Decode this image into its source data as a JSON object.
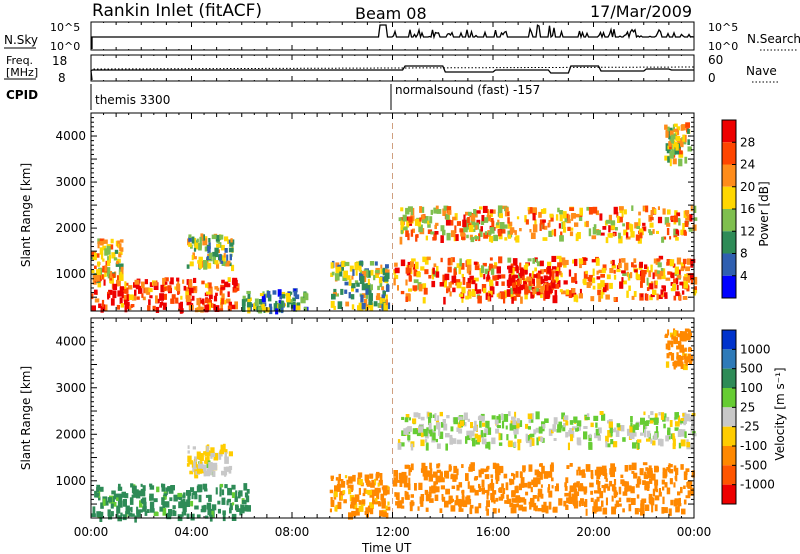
{
  "header": {
    "station": "Rankin Inlet (fitACF)",
    "beam": "Beam 08",
    "date": "17/Mar/2009"
  },
  "status_panels": {
    "nsky_label": "N.Sky",
    "nsearch_label": "N.Search",
    "nsky_ticks": [
      "10^5",
      "10^0"
    ],
    "nsearch_ticks": [
      "10^5",
      "10^0"
    ],
    "freq_label_line1": "Freq.",
    "freq_label_line2": "[MHz]",
    "freq_ticks": [
      "18",
      "8"
    ],
    "nave_label": "Nave",
    "nave_ticks": [
      "60",
      "0"
    ],
    "cpid_label": "CPID",
    "cpid_left": "themis 3300",
    "cpid_right": "normalsound (fast) -157"
  },
  "axes": {
    "ylabel": "Slant Range [km]",
    "xlabel": "Time UT",
    "xticks": [
      "00:00",
      "04:00",
      "08:00",
      "12:00",
      "16:00",
      "20:00",
      "00:00"
    ],
    "yticks": [
      "1000",
      "2000",
      "3000",
      "4000"
    ]
  },
  "colorbars": {
    "power": {
      "label": "Power [dB]",
      "ticks": [
        "4",
        "8",
        "12",
        "16",
        "20",
        "24",
        "28"
      ],
      "colors": [
        "#0000ff",
        "#2f5fb0",
        "#2e8b57",
        "#7fbf4f",
        "#ffd700",
        "#ff8c1a",
        "#ff4500",
        "#ee0000"
      ]
    },
    "velocity": {
      "label": "Velocity [m s⁻¹]",
      "ticks": [
        "1000",
        "500",
        "100",
        "25",
        "-25",
        "-100",
        "-500",
        "-1000"
      ],
      "colors": [
        "#0033cc",
        "#2e7ab8",
        "#2e8b57",
        "#66cc33",
        "#c8c8c8",
        "#ffcc00",
        "#ff8800",
        "#ff5500",
        "#ee0000"
      ]
    }
  },
  "chart_data": [
    {
      "type": "heatmap",
      "panel": "power",
      "x_range_hours": [
        0,
        24
      ],
      "y_range_km": [
        200,
        4500
      ],
      "regions": [
        {
          "t0": 0.0,
          "t1": 5.8,
          "r0": 250,
          "r1": 950,
          "level": 0.85
        },
        {
          "t0": 0.0,
          "t1": 1.2,
          "r0": 950,
          "r1": 1800,
          "level": 0.55
        },
        {
          "t0": 3.8,
          "t1": 5.6,
          "r0": 1200,
          "r1": 1900,
          "level": 0.45
        },
        {
          "t0": 6.0,
          "t1": 8.5,
          "r0": 250,
          "r1": 700,
          "level": 0.35
        },
        {
          "t0": 9.5,
          "t1": 11.8,
          "r0": 300,
          "r1": 1300,
          "level": 0.4
        },
        {
          "t0": 12.0,
          "t1": 24.0,
          "r0": 500,
          "r1": 1400,
          "level": 0.75
        },
        {
          "t0": 12.2,
          "t1": 24.0,
          "r0": 1800,
          "r1": 2500,
          "level": 0.65
        },
        {
          "t0": 16.5,
          "t1": 18.5,
          "r0": 600,
          "r1": 1200,
          "level": 0.95
        },
        {
          "t0": 22.8,
          "t1": 23.8,
          "r0": 3500,
          "r1": 4300,
          "level": 0.55
        }
      ]
    },
    {
      "type": "heatmap",
      "panel": "velocity",
      "x_range_hours": [
        0,
        24
      ],
      "y_range_km": [
        200,
        4500
      ],
      "regions": [
        {
          "t0": 0.0,
          "t1": 6.2,
          "r0": 250,
          "r1": 950,
          "velocity": 200
        },
        {
          "t0": 3.8,
          "t1": 5.5,
          "r0": 1200,
          "r1": 1800,
          "velocity": -30
        },
        {
          "t0": 9.5,
          "t1": 11.8,
          "r0": 300,
          "r1": 1200,
          "velocity": -150
        },
        {
          "t0": 12.0,
          "t1": 24.0,
          "r0": 400,
          "r1": 1400,
          "velocity": -300
        },
        {
          "t0": 12.2,
          "t1": 24.0,
          "r0": 1800,
          "r1": 2500,
          "velocity": 10
        },
        {
          "t0": 22.8,
          "t1": 23.8,
          "r0": 3500,
          "r1": 4300,
          "velocity": -200
        }
      ]
    }
  ]
}
